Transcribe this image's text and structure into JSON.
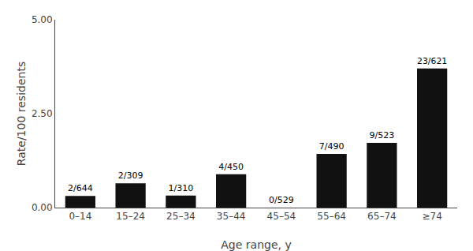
{
  "chart_data": {
    "type": "bar",
    "categories": [
      "0–14",
      "15–24",
      "25–34",
      "35–44",
      "45–54",
      "55–64",
      "65–74",
      "≥74"
    ],
    "values": [
      0.3106,
      0.6472,
      0.3226,
      0.8889,
      0.0,
      1.4286,
      1.7208,
      3.7036
    ],
    "annotations": [
      "2/644",
      "2/309",
      "1/310",
      "4/450",
      "0/529",
      "7/490",
      "9/523",
      "23/621"
    ],
    "color": "#111111",
    "x_label": "Age range, y",
    "y_label": "Rate/100 residents",
    "ylim": [
      0,
      5.0
    ],
    "yticks": [
      {
        "value": 0.0,
        "label": "0.00"
      },
      {
        "value": 2.5,
        "label": "2.50"
      },
      {
        "value": 5.0,
        "label": "5.00"
      }
    ],
    "grid": false
  }
}
